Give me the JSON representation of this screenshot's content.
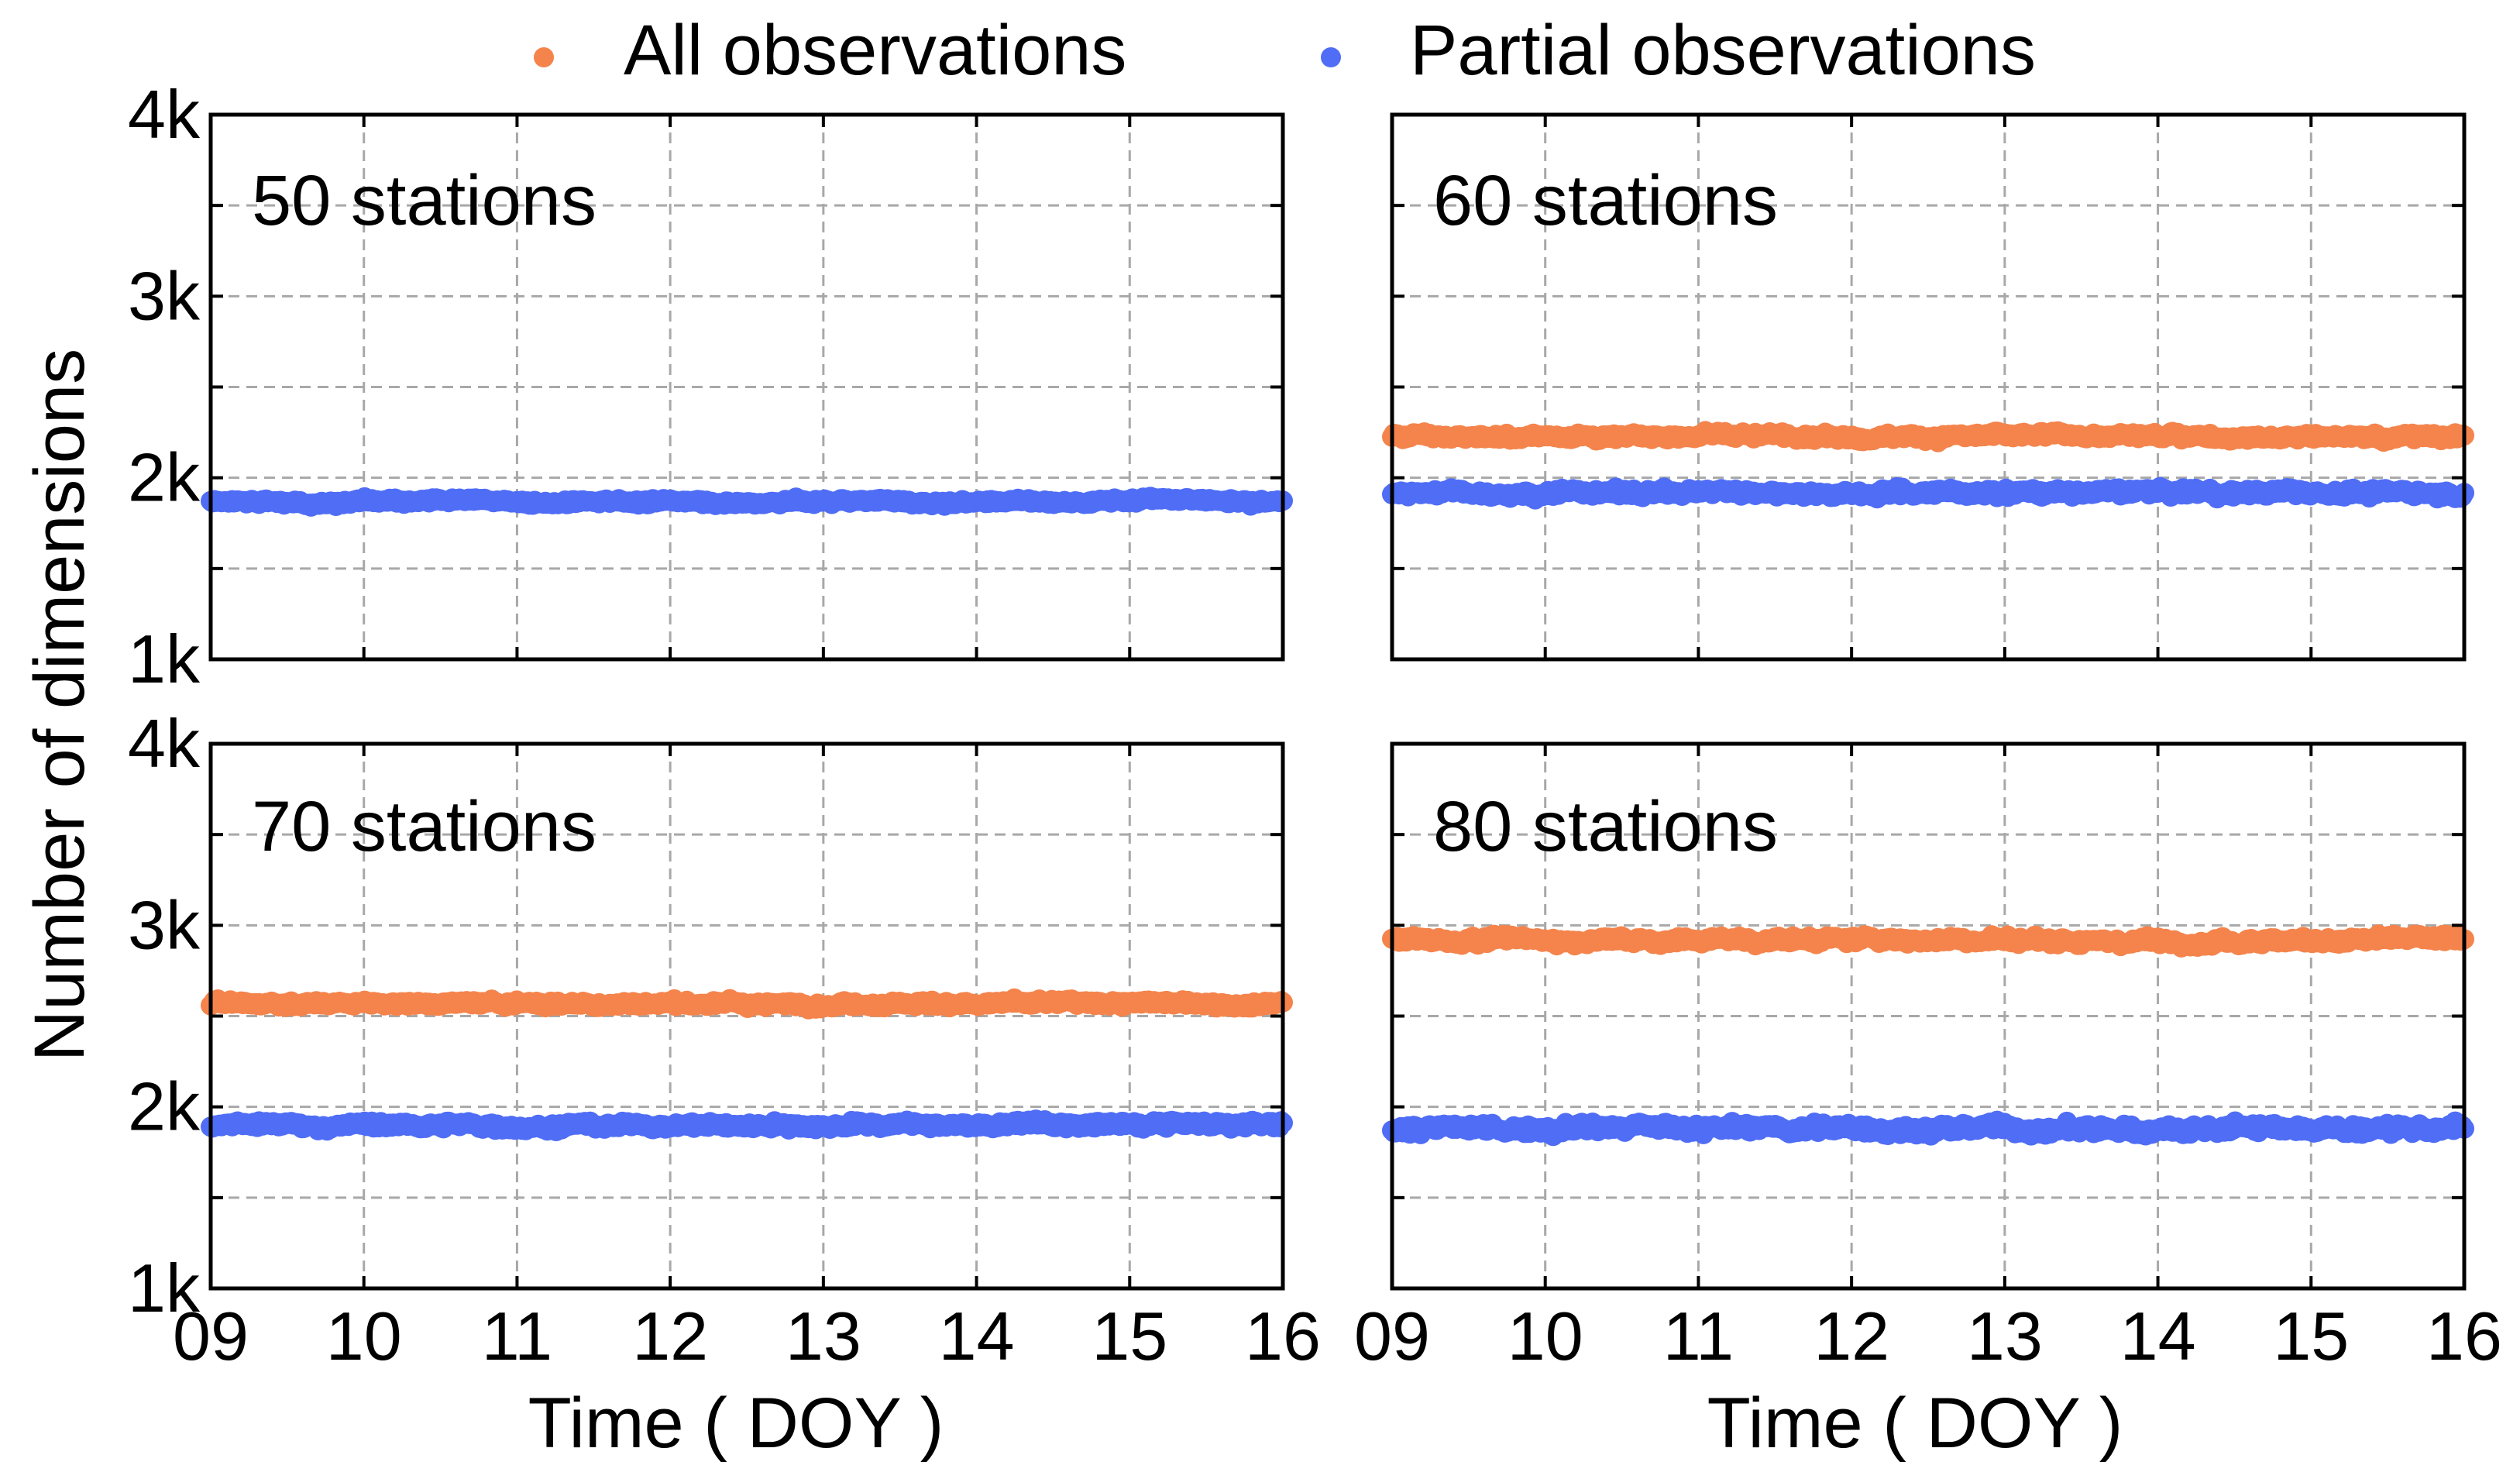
{
  "chart_data": {
    "type": "scatter",
    "ylabel": "Number of dimensions",
    "xlabel": "Time ( DOY )",
    "legend": {
      "position": "top-center",
      "entries": [
        {
          "name": "All observations",
          "color": "#F4844C"
        },
        {
          "name": "Partial observations",
          "color": "#4F6DF5"
        }
      ]
    },
    "xlim": [
      9,
      16
    ],
    "ylim": [
      1000,
      4000
    ],
    "x_ticks": [
      9,
      10,
      11,
      12,
      13,
      14,
      15,
      16
    ],
    "x_tick_labels": [
      "09",
      "10",
      "11",
      "12",
      "13",
      "14",
      "15",
      "16"
    ],
    "y_ticks": [
      1000,
      2000,
      3000,
      4000
    ],
    "y_tick_labels": [
      "1k",
      "2k",
      "3k",
      "4k"
    ],
    "grid": true,
    "series_colors": {
      "all": "#F4844C",
      "partial": "#4F6DF5"
    },
    "panels": [
      {
        "title": "50 stations",
        "series": [
          {
            "name": "Partial observations",
            "mean": 1870,
            "spread": 35,
            "n": 600
          }
        ]
      },
      {
        "title": "60 stations",
        "series": [
          {
            "name": "All observations",
            "mean": 2230,
            "spread": 45,
            "n": 600
          },
          {
            "name": "Partial observations",
            "mean": 1920,
            "spread": 55,
            "n": 600
          }
        ]
      },
      {
        "title": "70 stations",
        "series": [
          {
            "name": "All observations",
            "mean": 2570,
            "spread": 40,
            "n": 600
          },
          {
            "name": "Partial observations",
            "mean": 1900,
            "spread": 50,
            "n": 600
          }
        ]
      },
      {
        "title": "80 stations",
        "series": [
          {
            "name": "All observations",
            "mean": 2920,
            "spread": 55,
            "n": 600
          },
          {
            "name": "Partial observations",
            "mean": 1880,
            "spread": 75,
            "n": 600
          }
        ]
      }
    ]
  }
}
